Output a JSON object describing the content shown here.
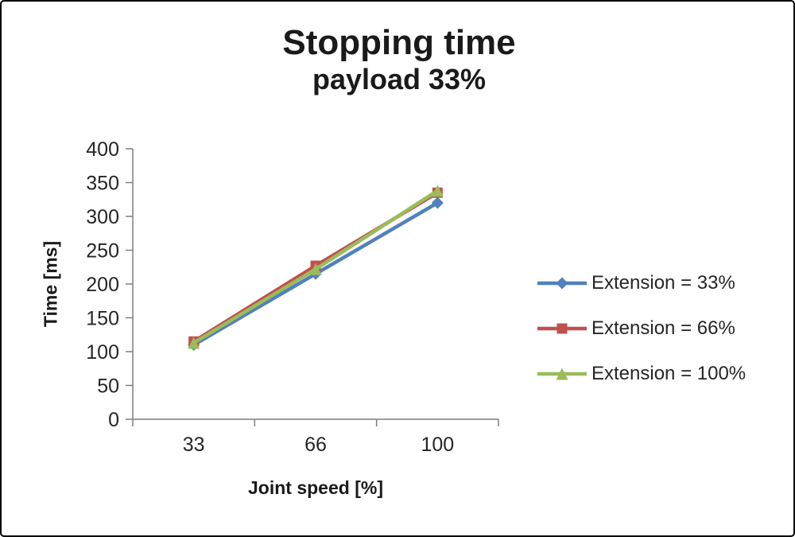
{
  "chart_data": {
    "type": "line",
    "title": "Stopping time",
    "subtitle": "payload 33%",
    "xlabel": "Joint speed [%]",
    "ylabel": "Time [ms]",
    "categories": [
      "33",
      "66",
      "100"
    ],
    "series": [
      {
        "name": "Extension = 33%",
        "values": [
          110,
          215,
          320
        ],
        "color": "#4F81BD",
        "marker": "diamond"
      },
      {
        "name": "Extension = 66%",
        "values": [
          115,
          227,
          335
        ],
        "color": "#C0504D",
        "marker": "square"
      },
      {
        "name": "Extension = 100%",
        "values": [
          113,
          222,
          338
        ],
        "color": "#9BBB59",
        "marker": "triangle"
      }
    ],
    "ylim": [
      0,
      400
    ],
    "ytick_step": 50,
    "grid": false,
    "legend_position": "right",
    "axis_color": "#7f7f7f",
    "text_color": "#262626"
  }
}
